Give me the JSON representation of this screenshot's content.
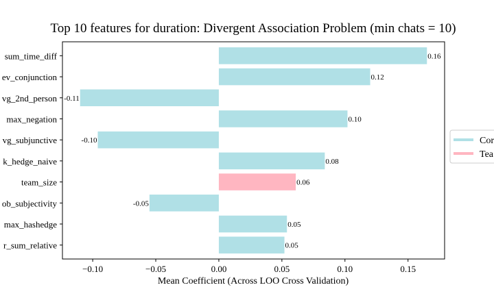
{
  "chart_data": {
    "type": "bar",
    "orientation": "horizontal",
    "title": "Top 10 features for duration: Divergent Association Problem (min chats = 10)",
    "xlabel": "Mean Coefficient (Across LOO Cross Validation)",
    "ylabel": "",
    "xlim": [
      -0.124,
      0.179
    ],
    "xticks": [
      -0.1,
      -0.05,
      0.0,
      0.05,
      0.1,
      0.15
    ],
    "xtick_labels": [
      "−0.10",
      "−0.05",
      "0.00",
      "0.05",
      "0.10",
      "0.15"
    ],
    "grid": false,
    "legend_position": "center-right",
    "categories": [
      "sum_time_diff",
      "ev_conjunction",
      "vg_2nd_person",
      "max_negation",
      "vg_subjunctive",
      "k_hedge_naive",
      "team_size",
      "ob_subjectivity",
      "max_hashedge",
      "r_sum_relative"
    ],
    "values": [
      0.165,
      0.12,
      -0.11,
      0.102,
      -0.096,
      0.084,
      0.061,
      -0.055,
      0.054,
      0.052
    ],
    "value_labels": [
      "0.16",
      "0.12",
      "-0.11",
      "0.10",
      "-0.10",
      "0.08",
      "0.06",
      "-0.05",
      "0.05",
      "0.05"
    ],
    "bar_groups": [
      "Cor",
      "Cor",
      "Cor",
      "Cor",
      "Cor",
      "Cor",
      "Tea",
      "Cor",
      "Cor",
      "Cor"
    ],
    "legend": [
      {
        "label": "Cor",
        "color": "#b0e0e6"
      },
      {
        "label": "Tea",
        "color": "#ffb6c1"
      }
    ],
    "colors": {
      "Cor": "#b0e0e6",
      "Tea": "#ffb6c1"
    }
  }
}
